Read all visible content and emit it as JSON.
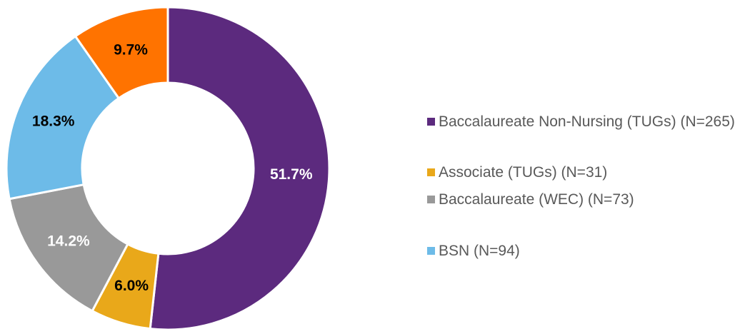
{
  "chart_data": {
    "type": "donut",
    "categories": [
      "Baccalaureate Non-Nursing (TUGs) (N=265)",
      "Associate (TUGs) (N=31)",
      "Baccalaureate (WEC) (N=73)",
      "BSN (N=94)",
      null
    ],
    "values": [
      51.7,
      6.0,
      14.2,
      18.3,
      9.7
    ],
    "value_labels": [
      "51.7%",
      "6.0%",
      "14.2%",
      "18.3%",
      "9.7%"
    ],
    "colors": [
      "#5c2a7e",
      "#e9a81a",
      "#999999",
      "#6dbbe8",
      "#ff7300"
    ],
    "label_colors": [
      "#ffffff",
      "#000000",
      "#ffffff",
      "#000000",
      "#000000"
    ],
    "legend": "right"
  }
}
